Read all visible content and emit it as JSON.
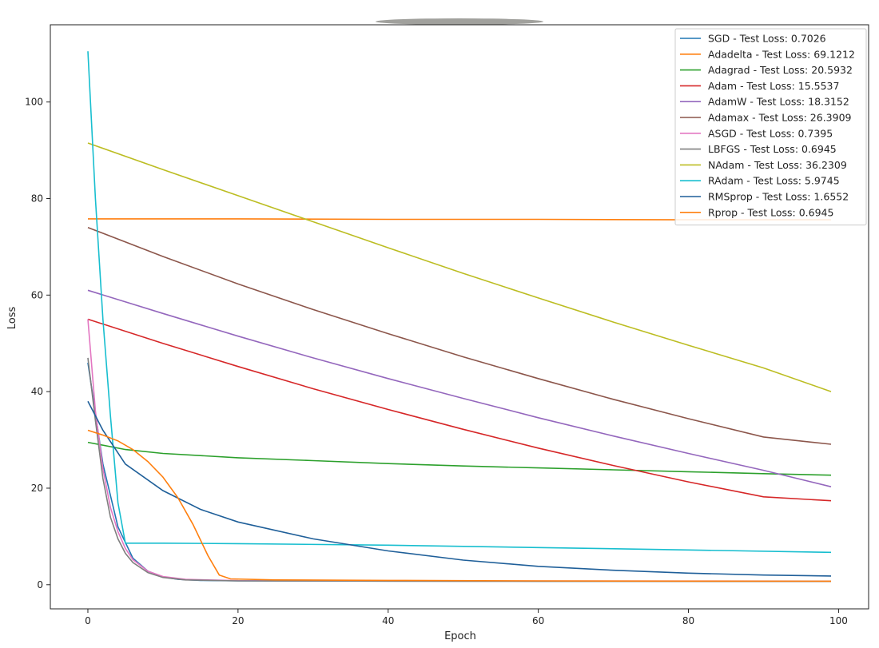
{
  "chart_data": {
    "type": "line",
    "xlabel": "Epoch",
    "ylabel": "Loss",
    "xlim": [
      -5,
      104
    ],
    "ylim": [
      -5,
      116
    ],
    "xticks": [
      0,
      20,
      40,
      60,
      80,
      100
    ],
    "yticks": [
      0,
      20,
      40,
      60,
      80,
      100
    ],
    "grid": false,
    "legend_position": "top-right",
    "series": [
      {
        "name": "SGD - Test Loss: 0.7026",
        "color": "#1f77b4",
        "points": [
          [
            0,
            46
          ],
          [
            2,
            25
          ],
          [
            4,
            12
          ],
          [
            6,
            5.5
          ],
          [
            8,
            2.8
          ],
          [
            10,
            1.6
          ],
          [
            12,
            1.1
          ],
          [
            15,
            0.9
          ],
          [
            20,
            0.8
          ],
          [
            40,
            0.75
          ],
          [
            60,
            0.72
          ],
          [
            80,
            0.71
          ],
          [
            99,
            0.7
          ]
        ]
      },
      {
        "name": "Adadelta - Test Loss: 69.1212",
        "color": "#ff7f0e",
        "points": [
          [
            0,
            75.8
          ],
          [
            20,
            75.8
          ],
          [
            40,
            75.7
          ],
          [
            60,
            75.7
          ],
          [
            80,
            75.6
          ],
          [
            99,
            75.6
          ]
        ]
      },
      {
        "name": "Adagrad - Test Loss: 20.5932",
        "color": "#2ca02c",
        "points": [
          [
            0,
            29.5
          ],
          [
            5,
            28
          ],
          [
            10,
            27.2
          ],
          [
            20,
            26.3
          ],
          [
            30,
            25.7
          ],
          [
            40,
            25.1
          ],
          [
            50,
            24.6
          ],
          [
            60,
            24.2
          ],
          [
            70,
            23.8
          ],
          [
            80,
            23.4
          ],
          [
            90,
            23
          ],
          [
            99,
            22.7
          ]
        ]
      },
      {
        "name": "Adam - Test Loss: 15.5537",
        "color": "#d62728",
        "points": [
          [
            0,
            55
          ],
          [
            10,
            50
          ],
          [
            20,
            45.2
          ],
          [
            30,
            40.6
          ],
          [
            40,
            36.3
          ],
          [
            50,
            32.2
          ],
          [
            60,
            28.3
          ],
          [
            70,
            24.7
          ],
          [
            80,
            21.3
          ],
          [
            90,
            18.2
          ],
          [
            99,
            17.4
          ]
        ]
      },
      {
        "name": "AdamW - Test Loss: 18.3152",
        "color": "#9467bd",
        "points": [
          [
            0,
            61
          ],
          [
            10,
            56.2
          ],
          [
            20,
            51.5
          ],
          [
            30,
            47
          ],
          [
            40,
            42.7
          ],
          [
            50,
            38.6
          ],
          [
            60,
            34.6
          ],
          [
            70,
            30.8
          ],
          [
            80,
            27.2
          ],
          [
            90,
            23.7
          ],
          [
            99,
            20.3
          ]
        ]
      },
      {
        "name": "Adamax - Test Loss: 26.3909",
        "color": "#8c564b",
        "points": [
          [
            0,
            74
          ],
          [
            10,
            68
          ],
          [
            20,
            62.3
          ],
          [
            30,
            57
          ],
          [
            40,
            52
          ],
          [
            50,
            47.2
          ],
          [
            60,
            42.7
          ],
          [
            70,
            38.4
          ],
          [
            80,
            34.4
          ],
          [
            90,
            30.6
          ],
          [
            99,
            29.1
          ]
        ]
      },
      {
        "name": "ASGD - Test Loss: 0.7395",
        "color": "#e377c2",
        "points": [
          [
            0,
            55
          ],
          [
            1,
            36
          ],
          [
            2,
            24
          ],
          [
            3,
            16
          ],
          [
            4,
            11
          ],
          [
            5,
            7.5
          ],
          [
            6,
            5.2
          ],
          [
            8,
            2.8
          ],
          [
            10,
            1.7
          ],
          [
            13,
            1.1
          ],
          [
            20,
            0.85
          ],
          [
            50,
            0.77
          ],
          [
            99,
            0.74
          ]
        ]
      },
      {
        "name": "LBFGS - Test Loss: 0.6945",
        "color": "#7f7f7f",
        "points": [
          [
            0,
            47
          ],
          [
            1,
            34
          ],
          [
            2,
            22
          ],
          [
            3,
            14
          ],
          [
            4,
            9.5
          ],
          [
            5,
            6.5
          ],
          [
            6,
            4.6
          ],
          [
            8,
            2.5
          ],
          [
            10,
            1.5
          ],
          [
            13,
            1
          ],
          [
            20,
            0.8
          ],
          [
            50,
            0.72
          ],
          [
            99,
            0.69
          ]
        ]
      },
      {
        "name": "NAdam - Test Loss: 36.2309",
        "color": "#bcbd22",
        "points": [
          [
            0,
            91.5
          ],
          [
            10,
            86
          ],
          [
            20,
            80.6
          ],
          [
            30,
            75.2
          ],
          [
            40,
            69.8
          ],
          [
            50,
            64.5
          ],
          [
            60,
            59.4
          ],
          [
            70,
            54.4
          ],
          [
            80,
            49.6
          ],
          [
            90,
            44.9
          ],
          [
            99,
            40
          ]
        ]
      },
      {
        "name": "RAdam - Test Loss: 5.9745",
        "color": "#17becf",
        "points": [
          [
            0,
            110.5
          ],
          [
            1,
            80
          ],
          [
            2,
            55
          ],
          [
            3,
            35
          ],
          [
            4,
            17
          ],
          [
            5,
            8.6
          ],
          [
            10,
            8.6
          ],
          [
            20,
            8.5
          ],
          [
            40,
            8.2
          ],
          [
            60,
            7.7
          ],
          [
            80,
            7.2
          ],
          [
            99,
            6.7
          ]
        ]
      },
      {
        "name": "RMSprop - Test Loss: 1.6552",
        "color": "#1f5f99",
        "points": [
          [
            0,
            38
          ],
          [
            2,
            32
          ],
          [
            5,
            25
          ],
          [
            10,
            19.5
          ],
          [
            15,
            15.6
          ],
          [
            20,
            13
          ],
          [
            30,
            9.5
          ],
          [
            40,
            7
          ],
          [
            50,
            5.1
          ],
          [
            60,
            3.8
          ],
          [
            70,
            3
          ],
          [
            80,
            2.4
          ],
          [
            90,
            2
          ],
          [
            99,
            1.8
          ]
        ]
      },
      {
        "name": "Rprop - Test Loss: 0.6945",
        "color": "#ff7f0e",
        "points": [
          [
            0,
            32
          ],
          [
            2,
            31
          ],
          [
            4,
            29.8
          ],
          [
            6,
            28
          ],
          [
            8,
            25.5
          ],
          [
            10,
            22.3
          ],
          [
            12,
            18
          ],
          [
            14,
            12.5
          ],
          [
            16,
            6
          ],
          [
            17.5,
            2
          ],
          [
            19,
            1.2
          ],
          [
            25,
            1
          ],
          [
            40,
            0.9
          ],
          [
            60,
            0.8
          ],
          [
            80,
            0.75
          ],
          [
            99,
            0.72
          ]
        ]
      }
    ]
  }
}
